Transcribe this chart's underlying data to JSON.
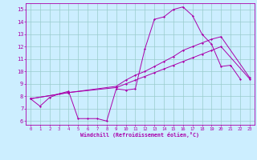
{
  "xlabel": "Windchill (Refroidissement éolien,°C)",
  "bg_color": "#cceeff",
  "grid_color": "#99cccc",
  "line_color": "#aa00aa",
  "xlim": [
    -0.5,
    23.5
  ],
  "ylim": [
    5.7,
    15.5
  ],
  "xticks": [
    0,
    1,
    2,
    3,
    4,
    5,
    6,
    7,
    8,
    9,
    10,
    11,
    12,
    13,
    14,
    15,
    16,
    17,
    18,
    19,
    20,
    21,
    22,
    23
  ],
  "yticks": [
    6,
    7,
    8,
    9,
    10,
    11,
    12,
    13,
    14,
    15
  ],
  "series1_x": [
    0,
    1,
    2,
    3,
    4,
    5,
    6,
    7,
    8,
    9,
    10,
    11,
    12,
    13,
    14,
    15,
    16,
    17,
    18,
    19,
    20,
    21,
    22
  ],
  "series1_y": [
    7.8,
    7.2,
    7.9,
    8.2,
    8.4,
    6.2,
    6.2,
    6.2,
    6.0,
    8.6,
    8.5,
    8.6,
    11.8,
    14.2,
    14.4,
    15.0,
    15.2,
    14.5,
    13.0,
    12.2,
    10.4,
    10.5,
    9.4
  ],
  "series2_x": [
    0,
    4,
    9,
    10,
    11,
    12,
    13,
    14,
    15,
    16,
    17,
    18,
    19,
    20,
    23
  ],
  "series2_y": [
    7.8,
    8.3,
    8.8,
    9.3,
    9.7,
    10.0,
    10.4,
    10.8,
    11.2,
    11.7,
    12.0,
    12.3,
    12.6,
    12.8,
    9.5
  ],
  "series3_x": [
    0,
    4,
    9,
    10,
    11,
    12,
    13,
    14,
    15,
    16,
    17,
    18,
    19,
    20,
    23
  ],
  "series3_y": [
    7.8,
    8.3,
    8.7,
    9.0,
    9.3,
    9.6,
    9.9,
    10.2,
    10.5,
    10.8,
    11.1,
    11.4,
    11.7,
    12.0,
    9.4
  ]
}
